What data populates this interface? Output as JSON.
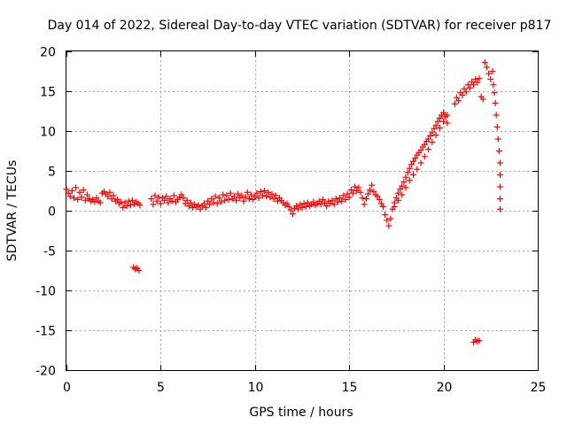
{
  "chart_data": {
    "type": "scatter",
    "title": "Day 014 of 2022, Sidereal Day-to-day VTEC variation (SDTVAR) for receiver p817",
    "xlabel": "GPS time / hours",
    "ylabel": "SDTVAR / TECUs",
    "xlim": [
      0,
      25
    ],
    "ylim": [
      -20,
      20
    ],
    "xticks": [
      0,
      5,
      10,
      15,
      20,
      25
    ],
    "yticks": [
      -20,
      -15,
      -10,
      -5,
      0,
      5,
      10,
      15,
      20
    ],
    "grid": true,
    "marker": "+",
    "series": [
      {
        "name": "SDTVAR",
        "color": "#ff0000",
        "points": [
          [
            0.0,
            2.7
          ],
          [
            0.1,
            2.2
          ],
          [
            0.2,
            1.8
          ],
          [
            0.3,
            2.5
          ],
          [
            0.4,
            1.6
          ],
          [
            0.5,
            2.9
          ],
          [
            0.6,
            1.4
          ],
          [
            0.7,
            2.3
          ],
          [
            0.8,
            1.7
          ],
          [
            0.9,
            2.6
          ],
          [
            1.0,
            1.3
          ],
          [
            1.1,
            2.0
          ],
          [
            1.2,
            1.5
          ],
          [
            1.3,
            1.2
          ],
          [
            1.4,
            1.4
          ],
          [
            1.5,
            1.1
          ],
          [
            1.6,
            1.6
          ],
          [
            1.7,
            1.2
          ],
          [
            1.8,
            1.0
          ],
          [
            1.9,
            2.2
          ],
          [
            2.0,
            2.4
          ],
          [
            2.1,
            2.1
          ],
          [
            2.2,
            1.8
          ],
          [
            2.3,
            2.3
          ],
          [
            2.4,
            1.5
          ],
          [
            2.5,
            1.9
          ],
          [
            2.6,
            1.2
          ],
          [
            2.7,
            1.4
          ],
          [
            2.8,
            0.9
          ],
          [
            2.9,
            1.1
          ],
          [
            3.0,
            0.4
          ],
          [
            3.1,
            1.0
          ],
          [
            3.2,
            0.6
          ],
          [
            3.3,
            1.2
          ],
          [
            3.4,
            0.7
          ],
          [
            3.5,
            1.3
          ],
          [
            3.6,
            0.8
          ],
          [
            3.7,
            1.1
          ],
          [
            3.8,
            0.9
          ],
          [
            3.9,
            0.7
          ],
          [
            3.55,
            -7.1
          ],
          [
            3.65,
            -7.3
          ],
          [
            3.75,
            -7.2
          ],
          [
            3.85,
            -7.5
          ],
          [
            4.5,
            1.5
          ],
          [
            4.6,
            0.8
          ],
          [
            4.7,
            1.9
          ],
          [
            4.8,
            1.2
          ],
          [
            4.9,
            1.7
          ],
          [
            5.0,
            0.9
          ],
          [
            5.1,
            1.6
          ],
          [
            5.2,
            1.3
          ],
          [
            5.3,
            1.8
          ],
          [
            5.4,
            1.0
          ],
          [
            5.5,
            1.5
          ],
          [
            5.6,
            1.2
          ],
          [
            5.7,
            1.9
          ],
          [
            5.8,
            1.1
          ],
          [
            5.9,
            1.4
          ],
          [
            6.0,
            1.7
          ],
          [
            6.1,
            2.0
          ],
          [
            6.2,
            1.6
          ],
          [
            6.3,
            0.9
          ],
          [
            6.4,
            1.3
          ],
          [
            6.5,
            0.6
          ],
          [
            6.6,
            1.0
          ],
          [
            6.7,
            0.4
          ],
          [
            6.8,
            0.8
          ],
          [
            6.9,
            0.5
          ],
          [
            7.0,
            0.7
          ],
          [
            7.1,
            0.2
          ],
          [
            7.2,
            0.6
          ],
          [
            7.3,
            0.9
          ],
          [
            7.4,
            0.4
          ],
          [
            7.5,
            1.2
          ],
          [
            7.6,
            0.8
          ],
          [
            7.7,
            1.5
          ],
          [
            7.8,
            1.0
          ],
          [
            7.9,
            1.8
          ],
          [
            8.0,
            0.9
          ],
          [
            8.1,
            1.6
          ],
          [
            8.2,
            1.1
          ],
          [
            8.3,
            2.0
          ],
          [
            8.4,
            1.3
          ],
          [
            8.5,
            1.9
          ],
          [
            8.6,
            1.4
          ],
          [
            8.7,
            2.2
          ],
          [
            8.8,
            1.5
          ],
          [
            8.9,
            1.8
          ],
          [
            9.0,
            1.3
          ],
          [
            9.1,
            2.1
          ],
          [
            9.2,
            1.6
          ],
          [
            9.3,
            1.9
          ],
          [
            9.4,
            1.2
          ],
          [
            9.5,
            1.7
          ],
          [
            9.6,
            2.3
          ],
          [
            9.7,
            1.5
          ],
          [
            9.8,
            2.0
          ],
          [
            9.9,
            1.4
          ],
          [
            10.0,
            1.8
          ],
          [
            10.1,
            2.2
          ],
          [
            10.2,
            1.6
          ],
          [
            10.3,
            2.4
          ],
          [
            10.4,
            1.9
          ],
          [
            10.5,
            2.5
          ],
          [
            10.6,
            1.8
          ],
          [
            10.7,
            2.3
          ],
          [
            10.8,
            1.7
          ],
          [
            10.9,
            2.1
          ],
          [
            11.0,
            1.5
          ],
          [
            11.1,
            1.9
          ],
          [
            11.2,
            1.2
          ],
          [
            11.3,
            1.6
          ],
          [
            11.4,
            1.3
          ],
          [
            11.5,
            1.0
          ],
          [
            11.6,
            0.7
          ],
          [
            11.7,
            0.9
          ],
          [
            11.8,
            0.5
          ],
          [
            11.9,
            0.1
          ],
          [
            12.0,
            -0.4
          ],
          [
            12.1,
            0.3
          ],
          [
            12.2,
            0.6
          ],
          [
            12.3,
            0.2
          ],
          [
            12.4,
            0.8
          ],
          [
            12.5,
            0.4
          ],
          [
            12.6,
            0.9
          ],
          [
            12.7,
            0.5
          ],
          [
            12.8,
            1.0
          ],
          [
            12.9,
            0.6
          ],
          [
            13.0,
            0.8
          ],
          [
            13.1,
            1.1
          ],
          [
            13.2,
            0.7
          ],
          [
            13.3,
            0.9
          ],
          [
            13.4,
            1.2
          ],
          [
            13.5,
            0.8
          ],
          [
            13.6,
            1.4
          ],
          [
            13.7,
            1.0
          ],
          [
            13.8,
            0.6
          ],
          [
            13.9,
            1.2
          ],
          [
            14.0,
            0.9
          ],
          [
            14.1,
            1.3
          ],
          [
            14.2,
            0.8
          ],
          [
            14.3,
            1.5
          ],
          [
            14.4,
            1.1
          ],
          [
            14.5,
            1.6
          ],
          [
            14.6,
            1.2
          ],
          [
            14.7,
            1.9
          ],
          [
            14.8,
            1.4
          ],
          [
            14.9,
            2.1
          ],
          [
            15.0,
            1.7
          ],
          [
            15.1,
            2.6
          ],
          [
            15.2,
            2.2
          ],
          [
            15.3,
            3.0
          ],
          [
            15.4,
            2.5
          ],
          [
            15.5,
            2.9
          ],
          [
            15.6,
            2.3
          ],
          [
            15.7,
            1.6
          ],
          [
            15.8,
            0.8
          ],
          [
            15.9,
            1.5
          ],
          [
            16.0,
            2.1
          ],
          [
            16.1,
            2.6
          ],
          [
            16.2,
            3.2
          ],
          [
            16.3,
            2.4
          ],
          [
            16.4,
            2.0
          ],
          [
            16.5,
            1.8
          ],
          [
            16.6,
            1.4
          ],
          [
            16.7,
            0.9
          ],
          [
            16.8,
            0.5
          ],
          [
            16.9,
            -0.5
          ],
          [
            17.0,
            -1.2
          ],
          [
            17.1,
            -1.9
          ],
          [
            17.2,
            -1.0
          ],
          [
            17.3,
            0.2
          ],
          [
            17.4,
            1.0
          ],
          [
            17.5,
            1.6
          ],
          [
            17.6,
            2.2
          ],
          [
            17.7,
            2.7
          ],
          [
            17.8,
            3.1
          ],
          [
            17.9,
            3.6
          ],
          [
            18.0,
            4.2
          ],
          [
            18.1,
            4.8
          ],
          [
            18.2,
            5.3
          ],
          [
            18.3,
            5.8
          ],
          [
            18.4,
            6.2
          ],
          [
            18.5,
            6.6
          ],
          [
            18.6,
            7.0
          ],
          [
            18.7,
            7.3
          ],
          [
            18.8,
            7.6
          ],
          [
            18.9,
            8.0
          ],
          [
            19.0,
            8.3
          ],
          [
            19.1,
            8.7
          ],
          [
            19.2,
            9.0
          ],
          [
            19.3,
            9.4
          ],
          [
            19.4,
            9.8
          ],
          [
            19.5,
            10.3
          ],
          [
            19.6,
            10.7
          ],
          [
            19.7,
            11.2
          ],
          [
            19.8,
            11.6
          ],
          [
            19.9,
            12.0
          ],
          [
            20.0,
            12.3
          ],
          [
            20.1,
            11.8
          ],
          [
            20.2,
            11.0
          ],
          [
            17.4,
            0.5
          ],
          [
            17.6,
            1.3
          ],
          [
            17.8,
            2.0
          ],
          [
            18.0,
            2.9
          ],
          [
            18.2,
            3.8
          ],
          [
            18.4,
            4.5
          ],
          [
            18.6,
            5.2
          ],
          [
            18.8,
            6.0
          ],
          [
            19.0,
            6.8
          ],
          [
            19.2,
            7.7
          ],
          [
            19.4,
            8.6
          ],
          [
            19.6,
            9.5
          ],
          [
            19.8,
            10.4
          ],
          [
            20.0,
            11.2
          ],
          [
            20.2,
            12.0
          ],
          [
            20.6,
            13.4
          ],
          [
            20.7,
            14.2
          ],
          [
            20.8,
            13.8
          ],
          [
            20.9,
            14.8
          ],
          [
            21.0,
            14.5
          ],
          [
            21.1,
            15.3
          ],
          [
            21.2,
            14.9
          ],
          [
            21.3,
            15.8
          ],
          [
            21.4,
            15.4
          ],
          [
            21.5,
            16.2
          ],
          [
            21.6,
            15.8
          ],
          [
            21.7,
            16.5
          ],
          [
            21.8,
            16.1
          ],
          [
            21.9,
            16.6
          ],
          [
            22.0,
            14.3
          ],
          [
            22.1,
            14.0
          ],
          [
            22.2,
            18.6
          ],
          [
            22.3,
            18.0
          ],
          [
            22.4,
            17.2
          ],
          [
            22.5,
            16.5
          ],
          [
            22.6,
            17.5
          ],
          [
            22.65,
            15.8
          ],
          [
            22.7,
            14.8
          ],
          [
            22.75,
            13.5
          ],
          [
            22.8,
            12.0
          ],
          [
            22.85,
            10.5
          ],
          [
            22.9,
            9.0
          ],
          [
            22.95,
            7.5
          ],
          [
            23.0,
            6.0
          ],
          [
            23.0,
            4.5
          ],
          [
            23.0,
            3.0
          ],
          [
            23.0,
            1.5
          ],
          [
            23.0,
            0.2
          ],
          [
            21.6,
            -16.5
          ],
          [
            21.7,
            -16.2
          ],
          [
            21.8,
            -16.4
          ],
          [
            21.9,
            -16.3
          ]
        ]
      }
    ]
  }
}
